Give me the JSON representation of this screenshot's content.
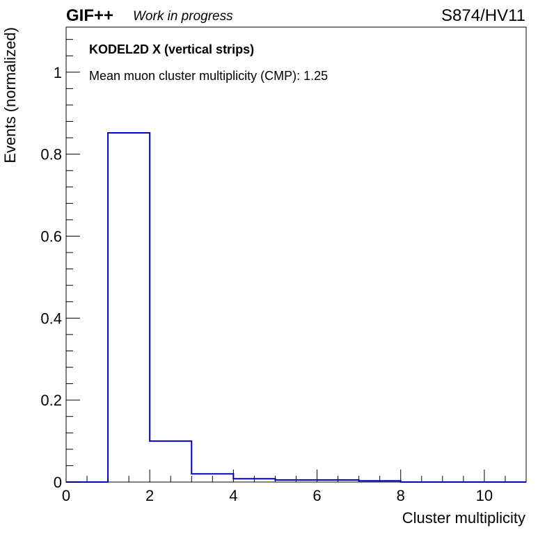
{
  "header": {
    "experiment": "GIF++",
    "status": "Work in progress",
    "run": "S874/HV11"
  },
  "annotations": {
    "detector": "KODEL2D X (vertical strips)",
    "cmp": "Mean muon cluster multiplicity (CMP): 1.25"
  },
  "chart_data": {
    "type": "bar",
    "style": "step-histogram",
    "xlabel": "Cluster multiplicity",
    "ylabel": "Events (normalized)",
    "xlim": [
      0,
      11
    ],
    "ylim": [
      0,
      1.11
    ],
    "x_ticks": [
      "0",
      "2",
      "4",
      "6",
      "8",
      "10"
    ],
    "y_ticks": [
      "0",
      "0.2",
      "0.4",
      "0.6",
      "0.8",
      "1"
    ],
    "bin_edges": [
      0,
      1,
      2,
      3,
      4,
      5,
      6,
      7,
      8,
      9,
      10,
      11
    ],
    "values": [
      0,
      0.852,
      0.1,
      0.02,
      0.008,
      0.005,
      0.005,
      0.003,
      0.0,
      0.0,
      0.0
    ],
    "color": "#0000cc",
    "grid": false
  }
}
